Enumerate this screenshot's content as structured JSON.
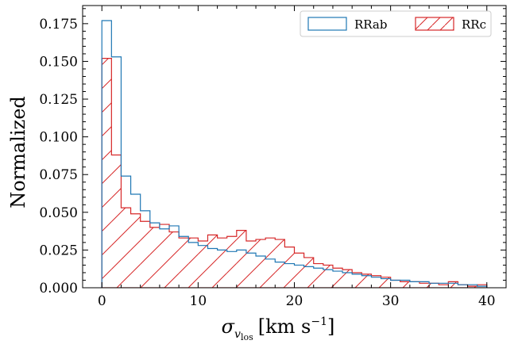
{
  "chart_data": {
    "type": "histogram",
    "title": "",
    "xlabel": "σ_v_los [km s⁻¹]",
    "xlabel_parts": {
      "symbol": "σ",
      "sub_var": "v",
      "sub_sub": "los",
      "unit_open": "[km s",
      "unit_exp": "−1",
      "unit_close": "]"
    },
    "ylabel": "Normalized",
    "xlim": [
      -2,
      42
    ],
    "ylim": [
      0,
      0.187
    ],
    "xticks": [
      0,
      10,
      20,
      30,
      40
    ],
    "xtick_labels": [
      "0",
      "10",
      "20",
      "30",
      "40"
    ],
    "yticks": [
      0.0,
      0.025,
      0.05,
      0.075,
      0.1,
      0.125,
      0.15,
      0.175
    ],
    "ytick_labels": [
      "0.000",
      "0.025",
      "0.050",
      "0.075",
      "0.100",
      "0.125",
      "0.150",
      "0.175"
    ],
    "bins": {
      "start": 0,
      "width": 1,
      "count": 40
    },
    "legend": {
      "position": "upper right"
    },
    "series": [
      {
        "name": "RRab",
        "color": "#1f77b4",
        "style": "step",
        "values": [
          0.177,
          0.153,
          0.074,
          0.062,
          0.051,
          0.043,
          0.039,
          0.041,
          0.034,
          0.03,
          0.028,
          0.026,
          0.025,
          0.024,
          0.025,
          0.023,
          0.021,
          0.019,
          0.017,
          0.016,
          0.015,
          0.014,
          0.013,
          0.012,
          0.011,
          0.01,
          0.009,
          0.008,
          0.007,
          0.006,
          0.005,
          0.005,
          0.004,
          0.004,
          0.003,
          0.003,
          0.003,
          0.002,
          0.002,
          0.001
        ]
      },
      {
        "name": "RRc",
        "color": "#d62728",
        "style": "hatched",
        "values": [
          0.152,
          0.088,
          0.053,
          0.049,
          0.044,
          0.04,
          0.042,
          0.037,
          0.033,
          0.033,
          0.031,
          0.035,
          0.033,
          0.034,
          0.038,
          0.031,
          0.032,
          0.033,
          0.032,
          0.027,
          0.023,
          0.02,
          0.016,
          0.015,
          0.013,
          0.012,
          0.01,
          0.009,
          0.008,
          0.007,
          0.005,
          0.004,
          0.004,
          0.003,
          0.003,
          0.002,
          0.004,
          0.002,
          0.001,
          0.002
        ]
      }
    ]
  }
}
